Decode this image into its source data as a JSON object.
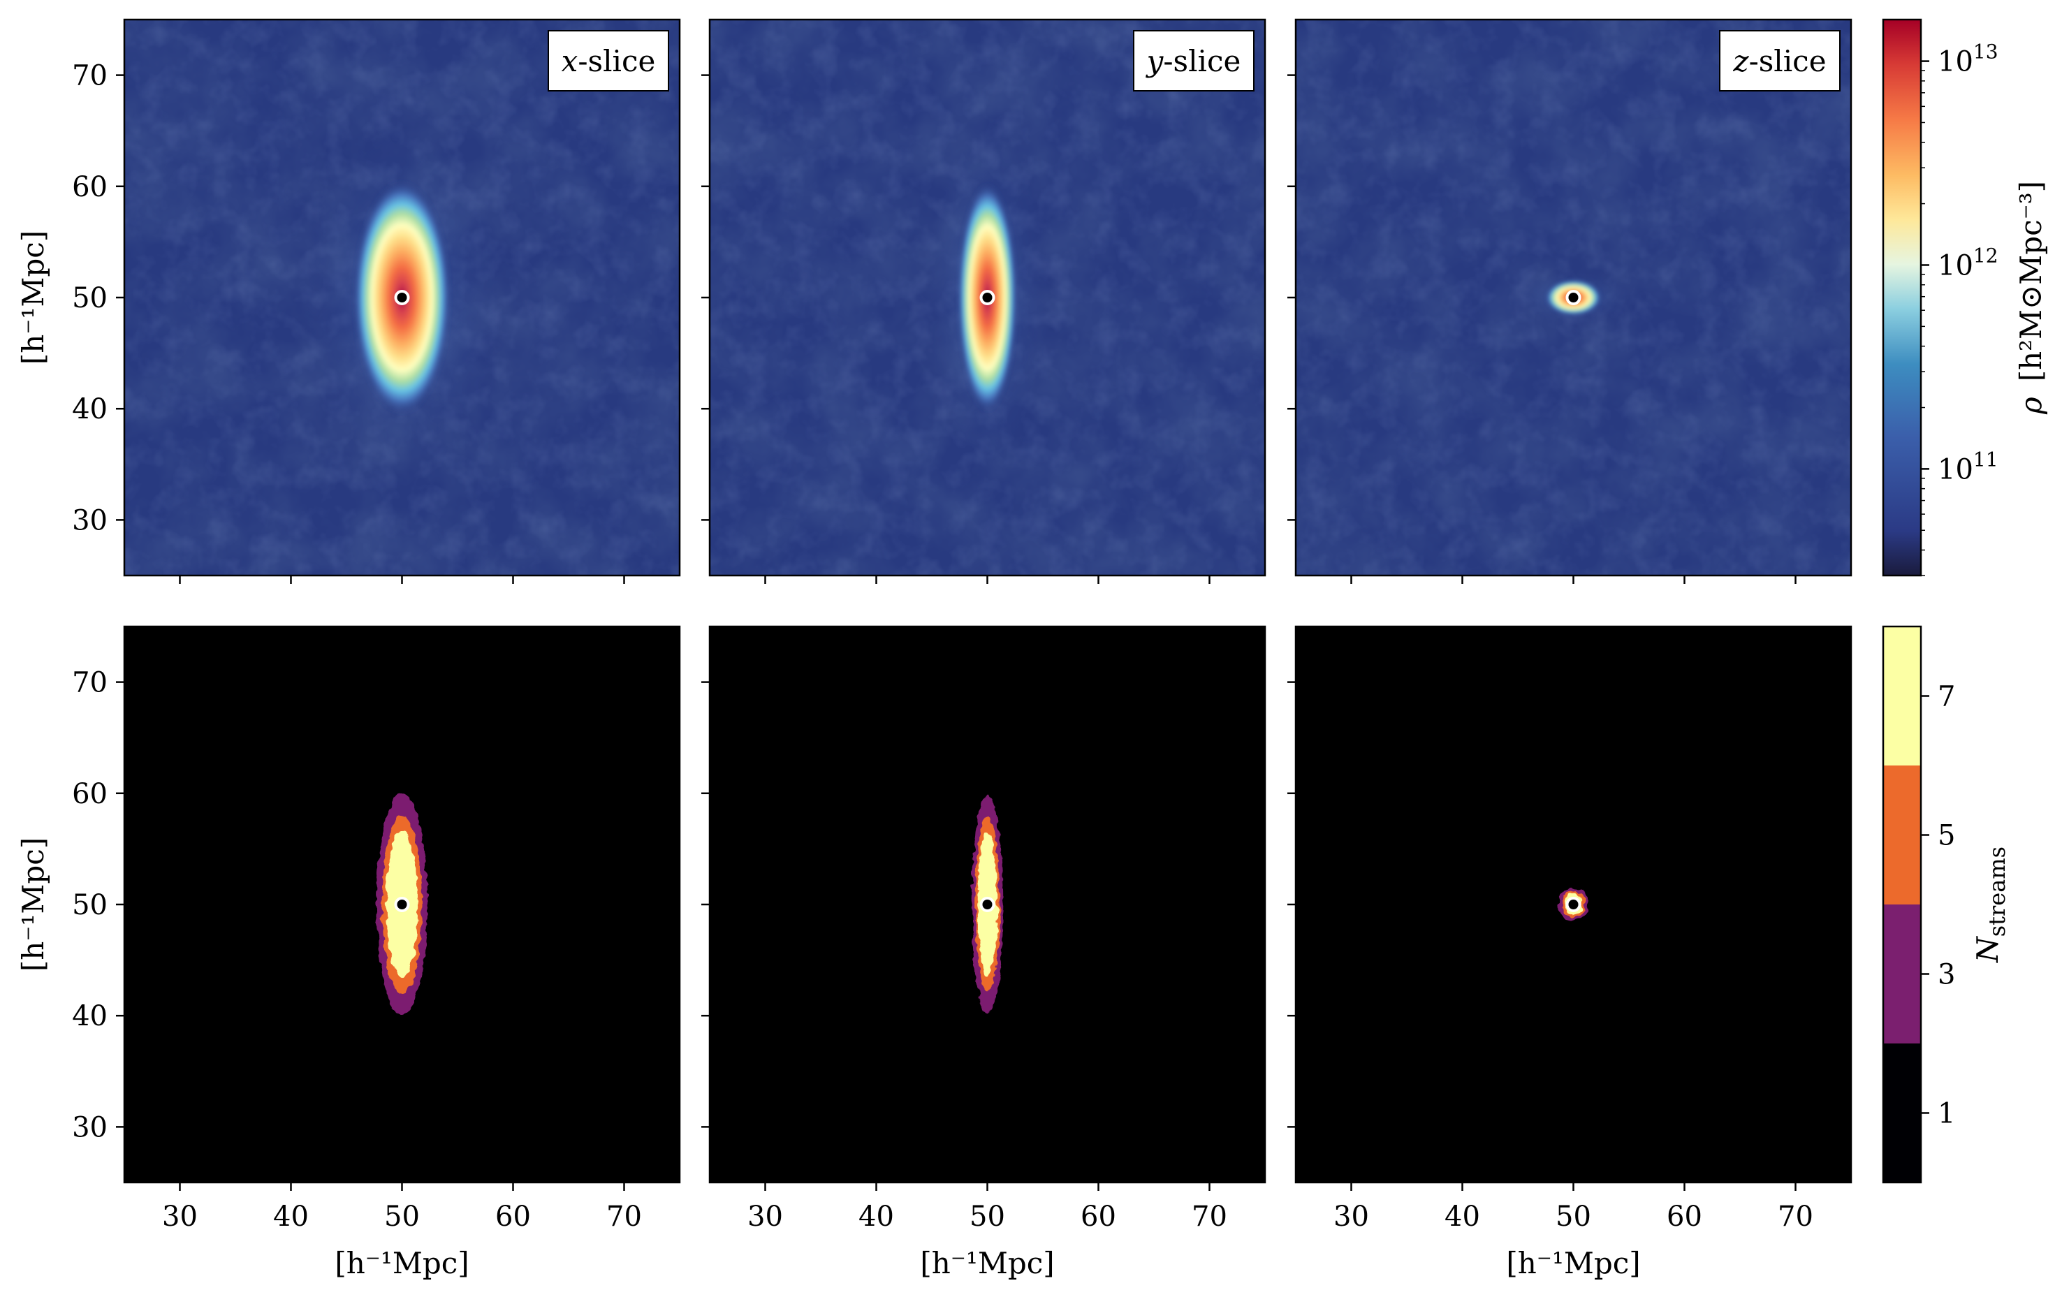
{
  "chart_data": {
    "type": "heatmap",
    "layout": "2x3 panel grid, shared axes",
    "axis_label": "[h⁻¹Mpc]",
    "xlim": [
      25,
      75
    ],
    "ylim": [
      25,
      75
    ],
    "ticks": [
      30,
      40,
      50,
      60,
      70
    ],
    "tick_labels": [
      "30",
      "40",
      "50",
      "60",
      "70"
    ],
    "slices": [
      {
        "label": "x-slice",
        "label_italic": "x",
        "label_rest": "-slice",
        "extent_x": 2.3,
        "extent_y": 10.0
      },
      {
        "label": "y-slice",
        "label_italic": "y",
        "label_rest": "-slice",
        "extent_x": 1.4,
        "extent_y": 9.8
      },
      {
        "label": "z-slice",
        "label_italic": "z",
        "label_rest": "-slice",
        "extent_x": 1.3,
        "extent_y": 1.5
      }
    ],
    "center_marker": {
      "x": 50,
      "y": 50
    },
    "rows": [
      {
        "quantity": "density",
        "colormap": "Spectral_r",
        "scale": "log",
        "colorbar_label_symbol": "ρ",
        "colorbar_label_units": "[h²M⊙Mpc⁻³]",
        "colorbar_range": [
          30000000000.0,
          16000000000000.0
        ],
        "colorbar_ticks": [
          100000000000.0,
          1000000000000.0,
          10000000000000.0
        ],
        "colorbar_tick_labels": [
          {
            "base": "10",
            "exp": "11"
          },
          {
            "base": "10",
            "exp": "12"
          },
          {
            "base": "10",
            "exp": "13"
          }
        ]
      },
      {
        "quantity": "number of streams",
        "colormap": "inferno (discrete)",
        "scale": "discrete",
        "colorbar_label_symbol": "N",
        "colorbar_label_sub": "streams",
        "colorbar_levels": [
          1,
          3,
          5,
          7
        ],
        "colorbar_tick_labels": [
          "1",
          "3",
          "5",
          "7"
        ],
        "level_colors": [
          "#000004",
          "#7b1f6f",
          "#ec6a2c",
          "#fcffa4"
        ]
      }
    ],
    "colors": {
      "background_low_density": "#283a80",
      "background_streams": "#000000",
      "marker_fill": "#000000",
      "marker_edge": "#ffffff"
    }
  }
}
